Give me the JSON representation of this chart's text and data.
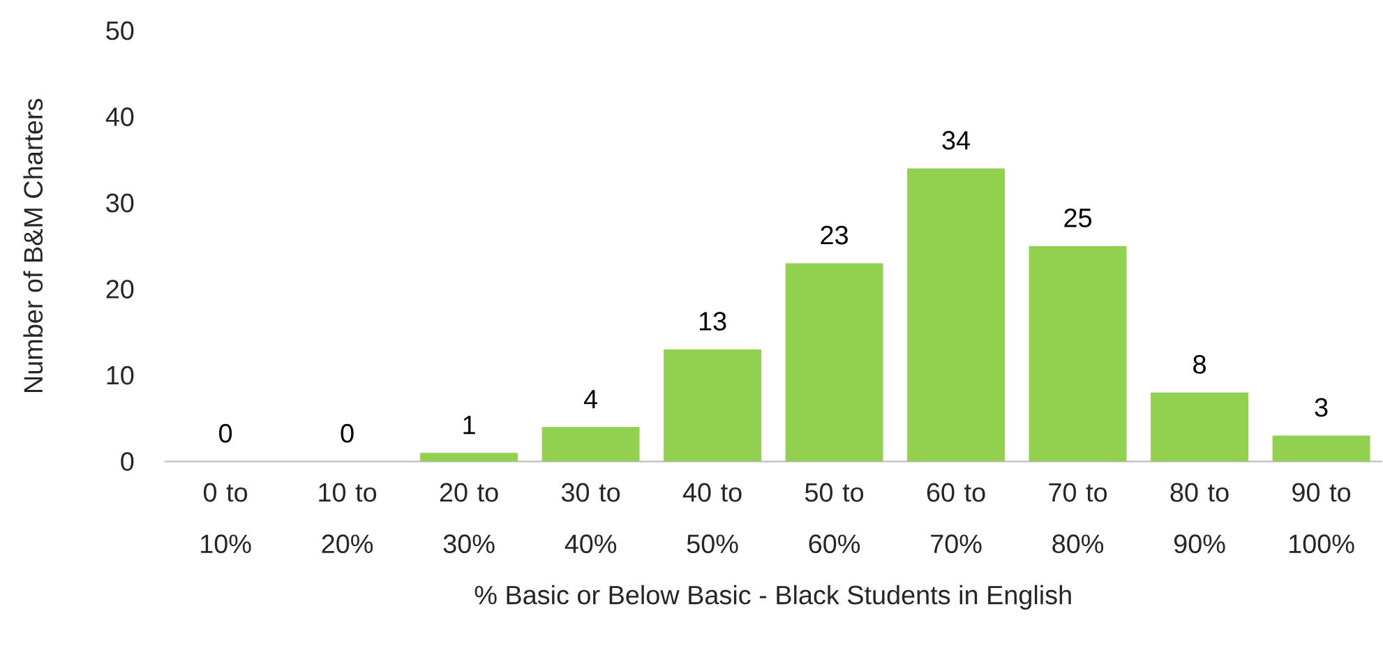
{
  "chart_data": {
    "type": "bar",
    "xlabel": "% Basic or Below Basic - Black Students in English",
    "ylabel": "Number of B&M Charters",
    "categories": [
      "0 to 10%",
      "10 to 20%",
      "20 to 30%",
      "30 to 40%",
      "40 to 50%",
      "50 to 60%",
      "60 to 70%",
      "70 to 80%",
      "80 to 90%",
      "90 to 100%"
    ],
    "values": [
      0,
      0,
      1,
      4,
      13,
      23,
      34,
      25,
      8,
      3
    ],
    "color": "#92d050",
    "ylim": [
      0,
      50
    ],
    "yticks": [
      0,
      10,
      20,
      30,
      40,
      50
    ],
    "data_labels": true,
    "grid": false
  }
}
